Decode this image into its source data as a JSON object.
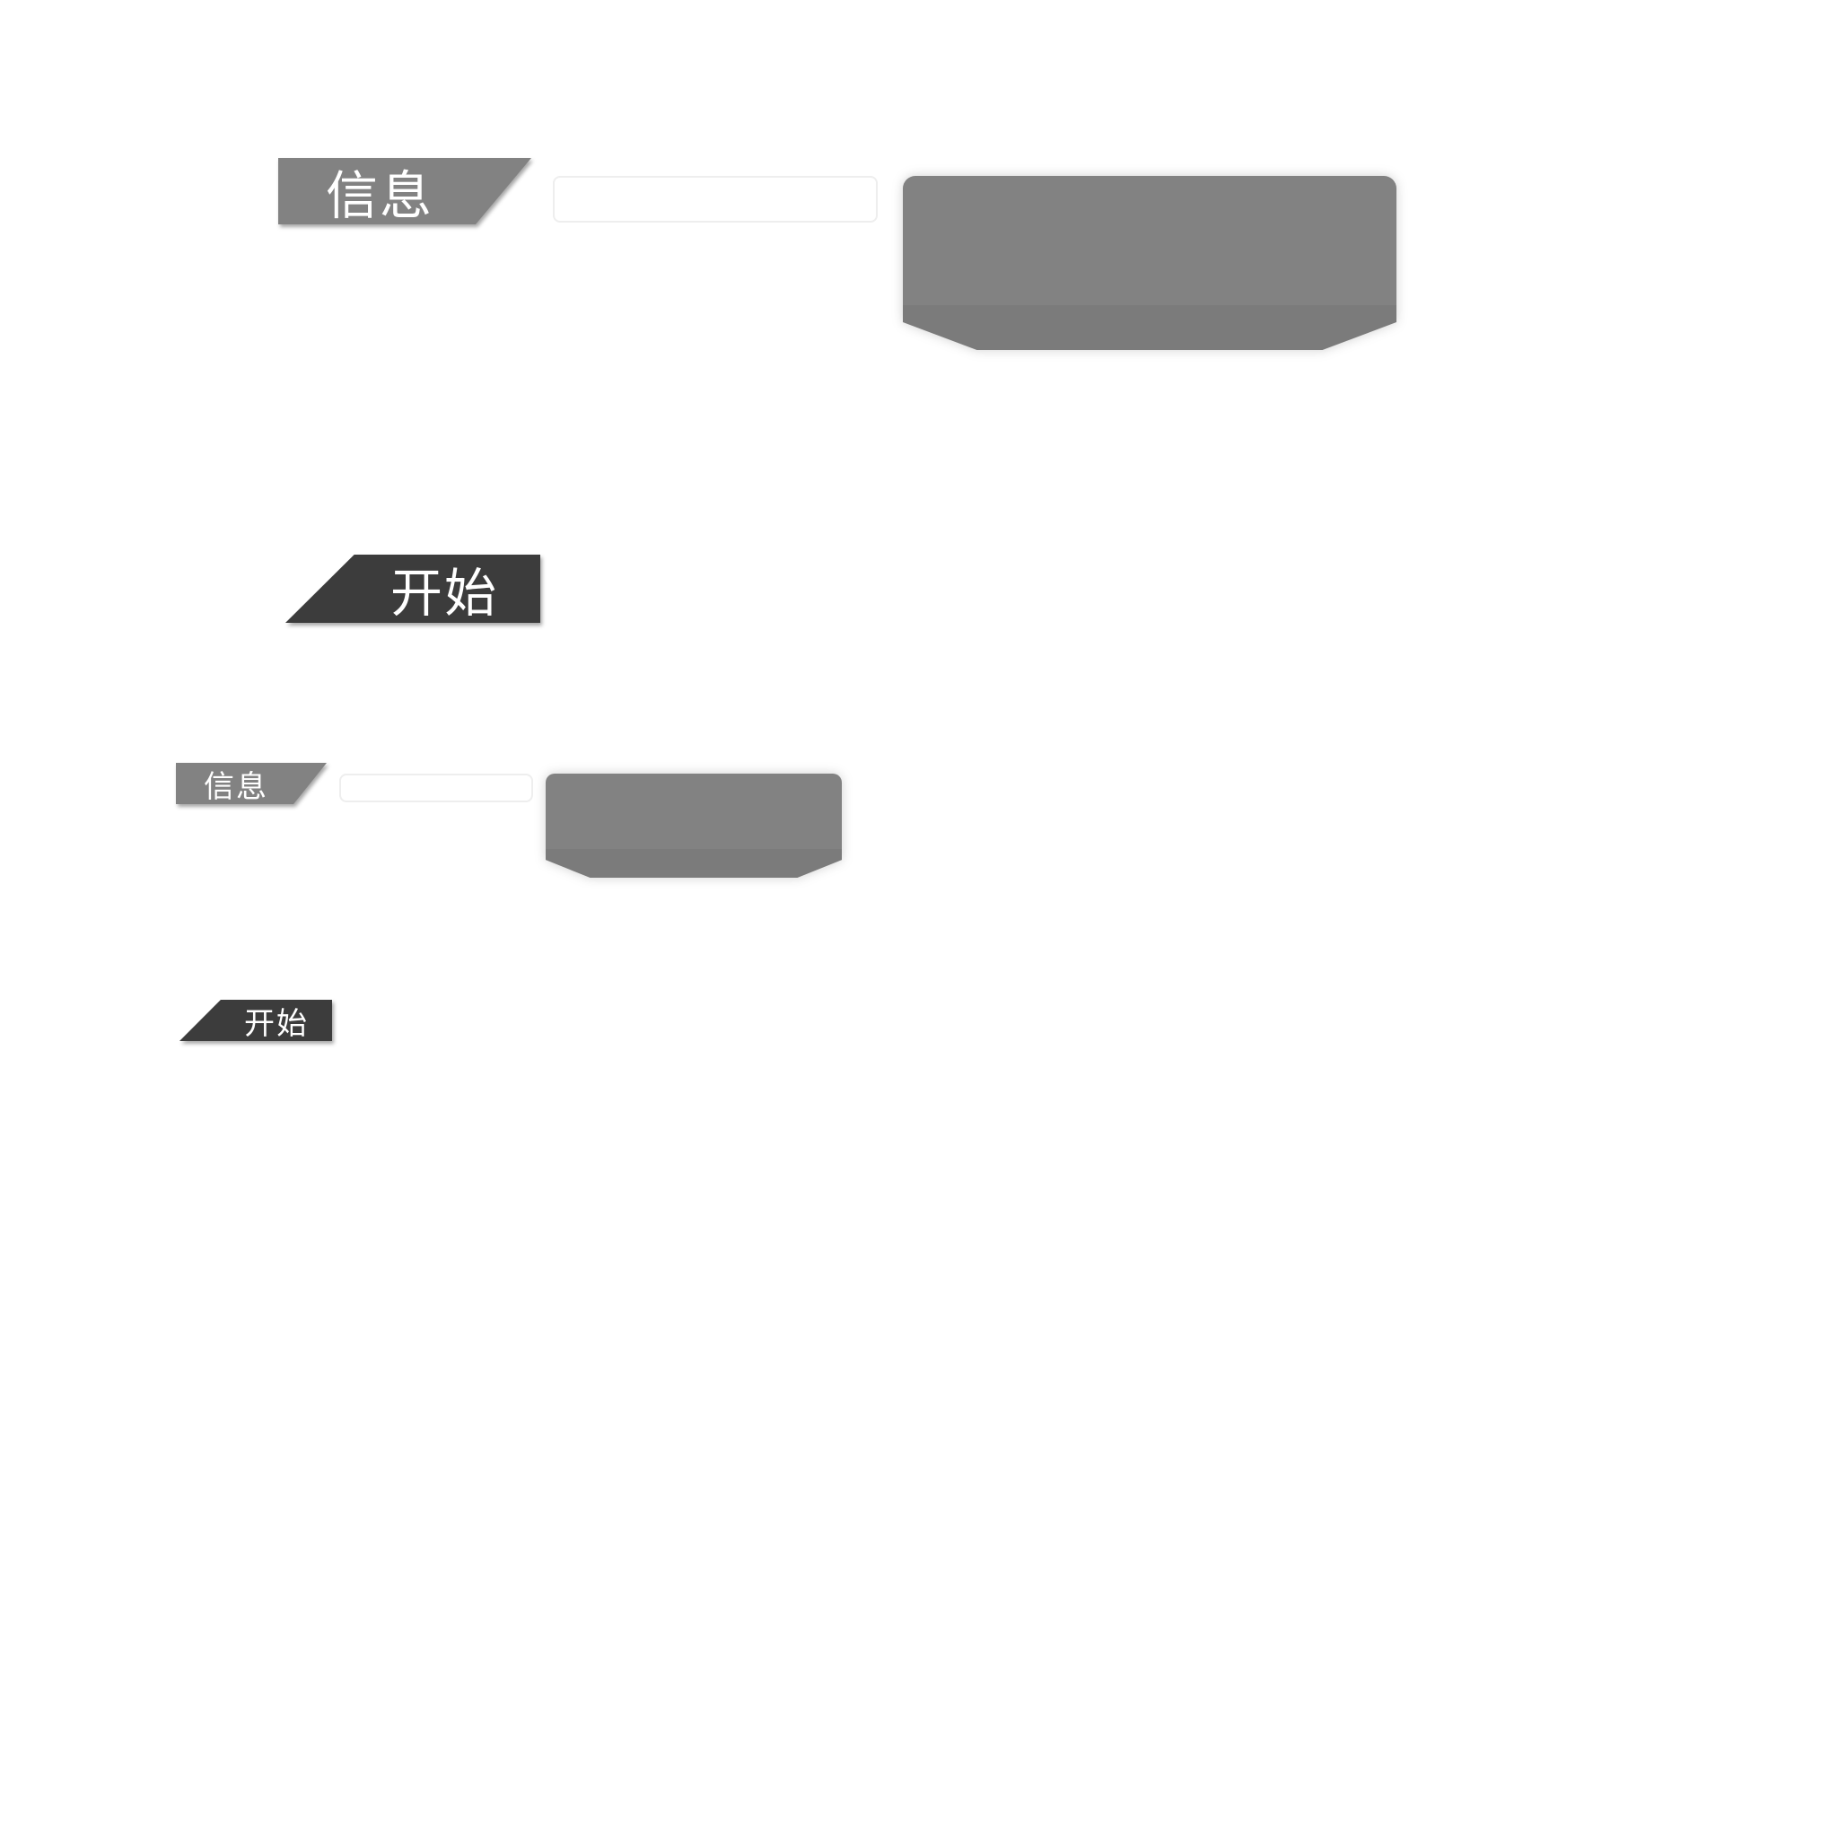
{
  "sets": [
    {
      "info_label": "信息",
      "start_label": "开始"
    },
    {
      "info_label": "信息",
      "start_label": "开始"
    }
  ],
  "colors": {
    "info_tag": "#828282",
    "start_tag": "#3c3c3c",
    "panel": "#828282",
    "field_border": "#eeeeee",
    "background": "#ffffff"
  }
}
